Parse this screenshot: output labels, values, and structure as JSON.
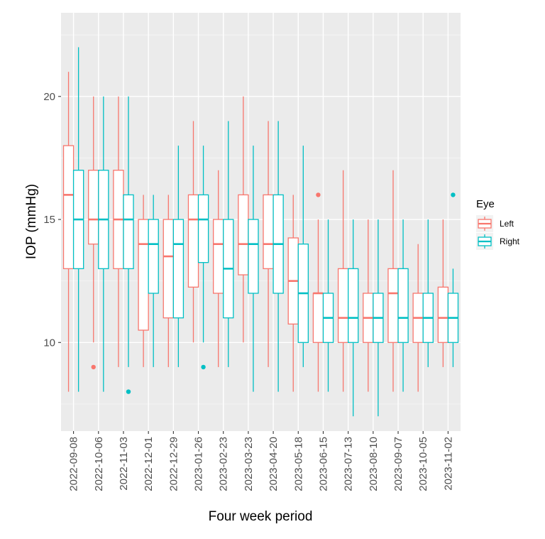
{
  "chart_data": {
    "type": "boxplot",
    "xlabel": "Four week period",
    "ylabel": "IOP (mmHg)",
    "ylim": [
      6.4,
      23.4
    ],
    "yticks": [
      10,
      15,
      20
    ],
    "grid": true,
    "legend": {
      "title": "Eye",
      "position": "right"
    },
    "categories": [
      "2022-09-08",
      "2022-10-06",
      "2022-11-03",
      "2022-12-01",
      "2022-12-29",
      "2023-01-26",
      "2023-02-23",
      "2023-03-23",
      "2023-04-20",
      "2023-05-18",
      "2023-06-15",
      "2023-07-13",
      "2023-08-10",
      "2023-09-07",
      "2023-10-05",
      "2023-11-02"
    ],
    "series": [
      {
        "name": "Left",
        "color": "#F8766D",
        "boxes": [
          {
            "lower": 8,
            "q1": 13,
            "median": 16,
            "q3": 18,
            "upper": 21,
            "outliers": []
          },
          {
            "lower": 10,
            "q1": 14,
            "median": 15,
            "q3": 17,
            "upper": 20,
            "outliers": [
              9
            ]
          },
          {
            "lower": 9,
            "q1": 13,
            "median": 15,
            "q3": 17,
            "upper": 20,
            "outliers": []
          },
          {
            "lower": 9,
            "q1": 10.5,
            "median": 14,
            "q3": 15,
            "upper": 16,
            "outliers": []
          },
          {
            "lower": 9,
            "q1": 11,
            "median": 13.5,
            "q3": 15,
            "upper": 16,
            "outliers": []
          },
          {
            "lower": 10,
            "q1": 12.25,
            "median": 15,
            "q3": 16,
            "upper": 19,
            "outliers": []
          },
          {
            "lower": 9,
            "q1": 12,
            "median": 14,
            "q3": 15,
            "upper": 17,
            "outliers": []
          },
          {
            "lower": 10,
            "q1": 12.75,
            "median": 14,
            "q3": 16,
            "upper": 20,
            "outliers": []
          },
          {
            "lower": 9,
            "q1": 13,
            "median": 14,
            "q3": 16,
            "upper": 19,
            "outliers": []
          },
          {
            "lower": 8,
            "q1": 10.75,
            "median": 12.5,
            "q3": 14.25,
            "upper": 16,
            "outliers": []
          },
          {
            "lower": 8,
            "q1": 10,
            "median": 12,
            "q3": 12,
            "upper": 15,
            "outliers": [
              16
            ]
          },
          {
            "lower": 8,
            "q1": 10,
            "median": 11,
            "q3": 13,
            "upper": 17,
            "outliers": []
          },
          {
            "lower": 8,
            "q1": 10,
            "median": 11,
            "q3": 12,
            "upper": 15,
            "outliers": []
          },
          {
            "lower": 8,
            "q1": 10,
            "median": 12,
            "q3": 13,
            "upper": 17,
            "outliers": []
          },
          {
            "lower": 8,
            "q1": 10,
            "median": 11,
            "q3": 12,
            "upper": 14,
            "outliers": []
          },
          {
            "lower": 9,
            "q1": 10,
            "median": 11,
            "q3": 12.25,
            "upper": 15,
            "outliers": []
          }
        ]
      },
      {
        "name": "Right",
        "color": "#00BFC4",
        "boxes": [
          {
            "lower": 8,
            "q1": 13,
            "median": 15,
            "q3": 17,
            "upper": 22,
            "outliers": []
          },
          {
            "lower": 8,
            "q1": 13,
            "median": 15,
            "q3": 17,
            "upper": 20,
            "outliers": []
          },
          {
            "lower": 9,
            "q1": 13,
            "median": 15,
            "q3": 16,
            "upper": 20,
            "outliers": [
              8
            ]
          },
          {
            "lower": 9,
            "q1": 12,
            "median": 14,
            "q3": 15,
            "upper": 16,
            "outliers": []
          },
          {
            "lower": 9,
            "q1": 11,
            "median": 14,
            "q3": 15,
            "upper": 18,
            "outliers": []
          },
          {
            "lower": 10,
            "q1": 13.25,
            "median": 15,
            "q3": 16,
            "upper": 18,
            "outliers": [
              9
            ]
          },
          {
            "lower": 9,
            "q1": 11,
            "median": 13,
            "q3": 15,
            "upper": 19,
            "outliers": []
          },
          {
            "lower": 8,
            "q1": 12,
            "median": 14,
            "q3": 15,
            "upper": 18,
            "outliers": []
          },
          {
            "lower": 8,
            "q1": 12,
            "median": 14,
            "q3": 16,
            "upper": 19,
            "outliers": []
          },
          {
            "lower": 9,
            "q1": 10,
            "median": 12,
            "q3": 14,
            "upper": 18,
            "outliers": []
          },
          {
            "lower": 8,
            "q1": 10,
            "median": 11,
            "q3": 12,
            "upper": 15,
            "outliers": []
          },
          {
            "lower": 7,
            "q1": 10,
            "median": 11,
            "q3": 13,
            "upper": 15,
            "outliers": []
          },
          {
            "lower": 7,
            "q1": 10,
            "median": 11,
            "q3": 12,
            "upper": 15,
            "outliers": []
          },
          {
            "lower": 8,
            "q1": 10,
            "median": 11,
            "q3": 13,
            "upper": 15,
            "outliers": []
          },
          {
            "lower": 9,
            "q1": 10,
            "median": 11,
            "q3": 12,
            "upper": 15,
            "outliers": []
          },
          {
            "lower": 9,
            "q1": 10,
            "median": 11,
            "q3": 12,
            "upper": 13,
            "outliers": [
              16
            ]
          }
        ]
      }
    ]
  }
}
